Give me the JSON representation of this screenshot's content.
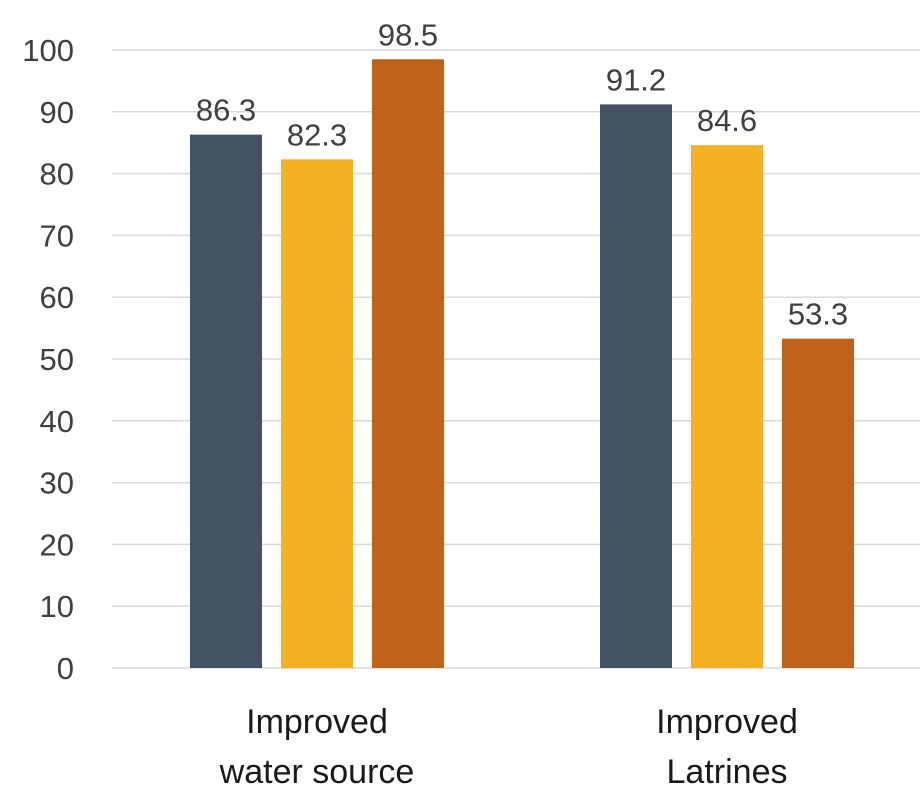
{
  "chart_data": {
    "type": "bar",
    "title": "",
    "xlabel": "",
    "ylabel": "",
    "ylim": [
      0,
      100
    ],
    "yticks": [
      "0",
      "10",
      "20",
      "30",
      "40",
      "50",
      "60",
      "70",
      "80",
      "90",
      "100"
    ],
    "grid": true,
    "legend": "none",
    "categories": [
      [
        "Improved",
        "water source"
      ],
      [
        "Improved",
        "Latrines"
      ]
    ],
    "series": [
      {
        "values": [
          86.3,
          91.2
        ],
        "color": "#435363"
      },
      {
        "values": [
          82.3,
          84.6
        ],
        "color": "#f4b123"
      },
      {
        "values": [
          98.5,
          53.3
        ],
        "color": "#c0631a"
      }
    ],
    "data_labels": [
      [
        "86.3",
        "91.2"
      ],
      [
        "82.3",
        "84.6"
      ],
      [
        "98.5",
        "53.3"
      ]
    ]
  }
}
